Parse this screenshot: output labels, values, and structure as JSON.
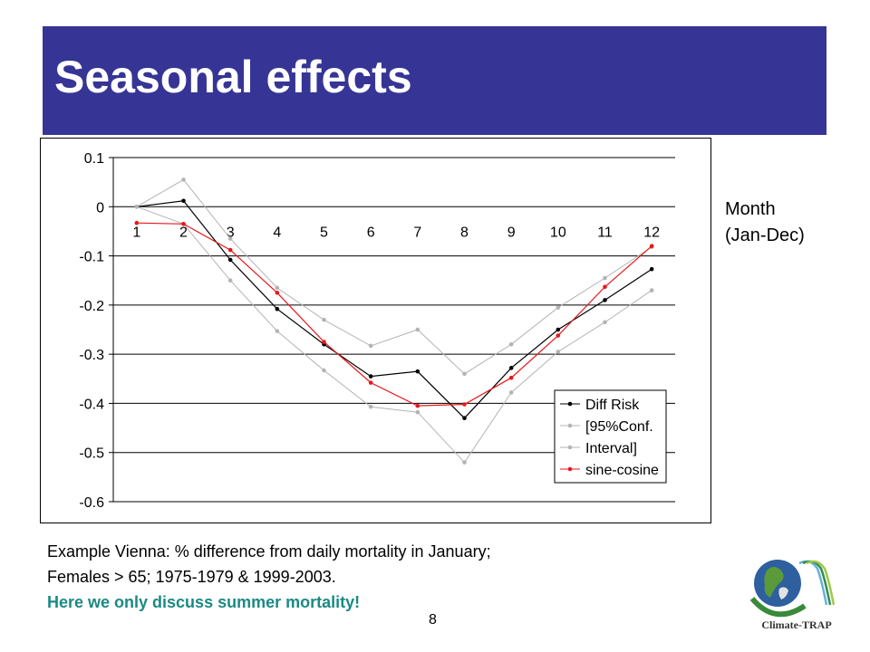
{
  "slide": {
    "title": "Seasonal effects",
    "side_label_line1": "Month",
    "side_label_line2": "(Jan-Dec)",
    "caption_line1": "Example Vienna: % difference from daily mortality in January;",
    "caption_line2": "Females > 65; 1975-1979 & 1999-2003.",
    "caption_highlight": "Here we only discuss summer mortality!",
    "page_number": "8",
    "logo_text": "Climate-TRAP",
    "colors": {
      "title_bar": "#363596",
      "highlight_text": "#1b8a84"
    }
  },
  "chart_data": {
    "type": "line",
    "x": [
      1,
      2,
      3,
      4,
      5,
      6,
      7,
      8,
      9,
      10,
      11,
      12
    ],
    "ylim": [
      -0.6,
      0.1
    ],
    "yticks": [
      0.1,
      0,
      -0.1,
      -0.2,
      -0.3,
      -0.4,
      -0.5,
      -0.6
    ],
    "ytick_labels": [
      "0.1",
      "0",
      "-0.1",
      "-0.2",
      "-0.3",
      "-0.4",
      "-0.5",
      "-0.6"
    ],
    "xtick_labels": [
      "1",
      "2",
      "3",
      "4",
      "5",
      "6",
      "7",
      "8",
      "9",
      "10",
      "11",
      "12"
    ],
    "grid": true,
    "legend_position": "bottom-right",
    "series": [
      {
        "name": "Diff Risk",
        "color": "#000000",
        "values": [
          0,
          0.012,
          -0.108,
          -0.208,
          -0.28,
          -0.345,
          -0.335,
          -0.43,
          -0.328,
          -0.25,
          -0.19,
          -0.127
        ]
      },
      {
        "name": "[95%Conf.",
        "color": "#b4b4b4",
        "values": [
          0,
          0.055,
          -0.065,
          -0.165,
          -0.23,
          -0.283,
          -0.25,
          -0.34,
          -0.28,
          -0.205,
          -0.145,
          -0.082
        ]
      },
      {
        "name": "Interval]",
        "color": "#b4b4b4",
        "values": [
          0,
          -0.035,
          -0.15,
          -0.253,
          -0.333,
          -0.407,
          -0.418,
          -0.52,
          -0.378,
          -0.295,
          -0.235,
          -0.17
        ]
      },
      {
        "name": "sine-cosine",
        "color": "#e8171b",
        "values": [
          -0.033,
          -0.035,
          -0.088,
          -0.175,
          -0.275,
          -0.358,
          -0.405,
          -0.402,
          -0.348,
          -0.262,
          -0.163,
          -0.08
        ]
      }
    ]
  }
}
